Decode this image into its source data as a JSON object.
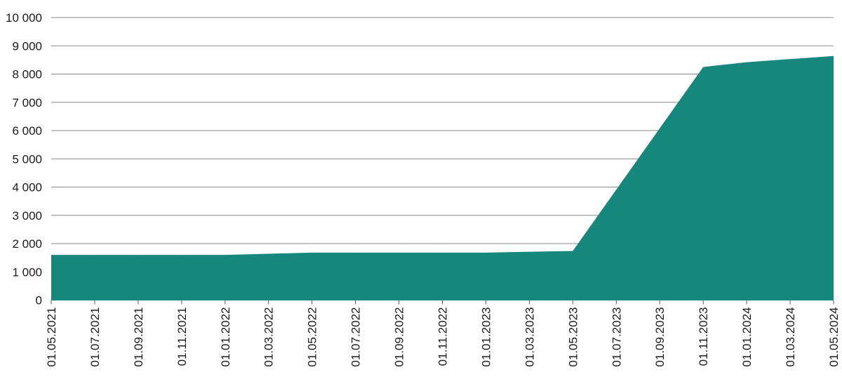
{
  "chart_data": {
    "type": "area",
    "title": "",
    "xlabel": "",
    "ylabel": "",
    "x": [
      "01.05.2021",
      "01.07.2021",
      "01.09.2021",
      "01.11.2021",
      "01.01.2022",
      "01.03.2022",
      "01.05.2022",
      "01.07.2022",
      "01.09.2022",
      "01.11.2022",
      "01.01.2023",
      "01.03.2023",
      "01.05.2023",
      "01.07.2023",
      "01.09.2023",
      "01.11.2023",
      "01.01.2024",
      "01.03.2024",
      "01.05.2024"
    ],
    "values": [
      1600,
      1600,
      1600,
      1600,
      1600,
      1640,
      1680,
      1680,
      1680,
      1680,
      1680,
      1710,
      1740,
      3910,
      6080,
      8250,
      8420,
      8530,
      8640
    ],
    "ylim": [
      0,
      10000
    ],
    "yticks": [
      0,
      1000,
      2000,
      3000,
      4000,
      5000,
      6000,
      7000,
      8000,
      9000,
      10000
    ],
    "ytick_labels": [
      "0",
      "1 000",
      "2 000",
      "3 000",
      "4 000",
      "5 000",
      "6 000",
      "7 000",
      "8 000",
      "9 000",
      "10 000"
    ],
    "grid": true,
    "color": "#16877d"
  }
}
